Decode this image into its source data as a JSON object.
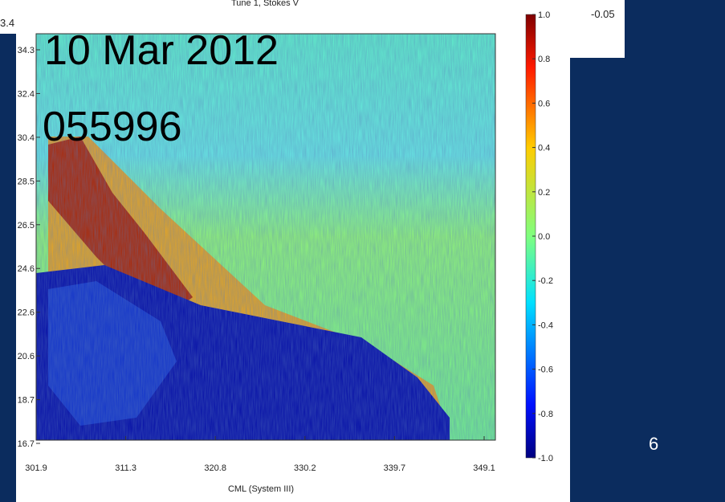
{
  "slide": {
    "left_fragment": "3.4",
    "corner_value": "-0.05",
    "overlay_date": "10 Mar 2012",
    "overlay_id": "055996",
    "page_number": "6"
  },
  "figure": {
    "title": "Tune 1, Stokes V",
    "xlabel": "CML (System III)",
    "xticks": [
      "301.9",
      "311.3",
      "320.8",
      "330.2",
      "339.7",
      "349.1"
    ],
    "yticks": [
      "34.3",
      "32.4",
      "30.4",
      "28.5",
      "26.5",
      "24.6",
      "22.6",
      "20.6",
      "18.7",
      "16.7"
    ],
    "colorbar_ticks": [
      "1.0",
      "0.8",
      "0.6",
      "0.4",
      "0.2",
      "0.0",
      "-0.2",
      "-0.4",
      "-0.6",
      "-0.8",
      "-1.0"
    ]
  }
}
